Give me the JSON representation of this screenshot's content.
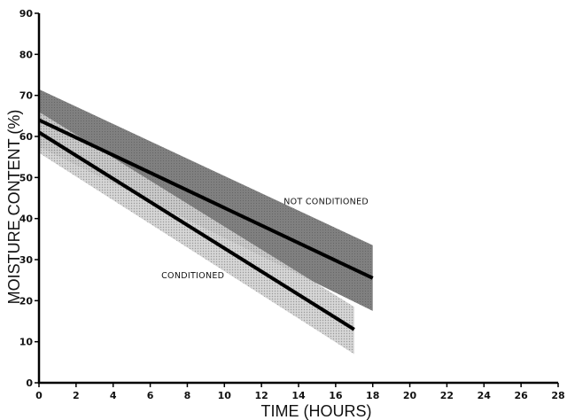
{
  "chart_data": {
    "type": "line",
    "xlabel": "TIME (HOURS)",
    "ylabel": "MOISTURE CONTENT (%)",
    "xlim": [
      0,
      28
    ],
    "ylim": [
      0,
      90
    ],
    "x_ticks": [
      "0",
      "2",
      "4",
      "6",
      "8",
      "10",
      "12",
      "14",
      "16",
      "18",
      "20",
      "22",
      "24",
      "26",
      "28"
    ],
    "y_ticks": [
      "0",
      "10",
      "20",
      "30",
      "40",
      "50",
      "60",
      "70",
      "80",
      "90"
    ],
    "grid": false,
    "series": [
      {
        "name": "NOT CONDITIONED",
        "x": [
          0,
          18
        ],
        "y": [
          64,
          25.5
        ],
        "band_upper": [
          71.5,
          33.5
        ],
        "band_lower": [
          57.5,
          17.5
        ],
        "band_color": "#6f6f6f"
      },
      {
        "name": "CONDITIONED",
        "x": [
          0,
          17
        ],
        "y": [
          61,
          13
        ],
        "band_upper": [
          66,
          18.5
        ],
        "band_lower": [
          56,
          7
        ],
        "band_color": "#c4c4c4"
      }
    ],
    "annotations": [
      {
        "text": "NOT CONDITIONED",
        "x": 13.2,
        "y": 43.5
      },
      {
        "text": "CONDITIONED",
        "x": 6.6,
        "y": 25.5
      }
    ]
  }
}
